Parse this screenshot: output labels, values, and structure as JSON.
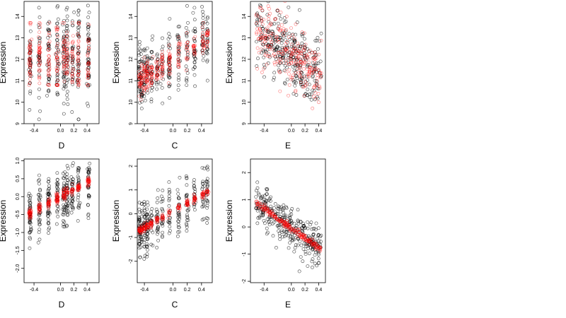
{
  "figure": {
    "background": "#ffffff",
    "colors": {
      "observed": "#000000",
      "fitted": "#ff0000",
      "axis": "#000000"
    }
  },
  "chart_data": [
    {
      "type": "scatter",
      "xlabel": "D",
      "ylabel": "Expression",
      "xlim": [
        -0.55,
        0.58
      ],
      "ylim": [
        9,
        14.7
      ],
      "xticks": [
        -0.4,
        0.0,
        0.2,
        0.4
      ],
      "xtick_labels": [
        "-0.4",
        "0.0",
        "0.2",
        "0.4"
      ],
      "yticks": [
        9,
        10,
        11,
        12,
        13,
        14
      ],
      "ytick_labels": [
        "9",
        "10",
        "11",
        "12",
        "13",
        "14"
      ],
      "columns": [
        -0.46,
        -0.32,
        -0.18,
        -0.05,
        0.05,
        0.1,
        0.18,
        0.27,
        0.42
      ],
      "series": [
        {
          "name": "",
          "marker": "open-circle",
          "color": "#000000",
          "y_range": [
            9.2,
            14.6
          ],
          "center": 12.1,
          "spread": 1.0,
          "count": 320
        },
        {
          "name": "",
          "marker": "open-circle",
          "color": "#ff0000",
          "y_range": [
            10.8,
            13.7
          ],
          "center": 12.1,
          "spread": 0.75,
          "count": 260
        }
      ]
    },
    {
      "type": "scatter",
      "xlabel": "C",
      "ylabel": "Expression",
      "xlim": [
        -0.5,
        0.55
      ],
      "ylim": [
        9,
        14.7
      ],
      "xticks": [
        -0.4,
        0.0,
        0.2,
        0.4
      ],
      "xtick_labels": [
        "-0.4",
        "0.0",
        "0.2",
        "0.4"
      ],
      "yticks": [
        9,
        10,
        11,
        12,
        13,
        14
      ],
      "ytick_labels": [
        "9",
        "10",
        "11",
        "12",
        "13",
        "14"
      ],
      "columns": [
        -0.47,
        -0.44,
        -0.4,
        -0.36,
        -0.3,
        -0.22,
        -0.15,
        -0.05,
        0.08,
        0.2,
        0.3,
        0.42,
        0.48
      ],
      "series": [
        {
          "name": "",
          "marker": "open-circle",
          "color": "#000000",
          "trend": {
            "slope": 2.0,
            "intercept": 12.0
          },
          "spread": 0.75,
          "count": 320
        },
        {
          "name": "",
          "marker": "open-circle",
          "color": "#ff0000",
          "trend": {
            "slope": 2.0,
            "intercept": 12.0
          },
          "spread": 0.35,
          "count": 260
        }
      ]
    },
    {
      "type": "scatter",
      "xlabel": "E",
      "ylabel": "Expression",
      "xlim": [
        -0.6,
        0.5
      ],
      "ylim": [
        9,
        14.7
      ],
      "xticks": [
        -0.4,
        0.0,
        0.2,
        0.4
      ],
      "xtick_labels": [
        "-0.4",
        "0.0",
        "0.2",
        "0.4"
      ],
      "yticks": [
        9,
        10,
        11,
        12,
        13,
        14
      ],
      "ytick_labels": [
        "9",
        "10",
        "11",
        "12",
        "13",
        "14"
      ],
      "columns": [],
      "series": [
        {
          "name": "",
          "marker": "open-circle",
          "color": "#000000",
          "trend": {
            "slope": -2.2,
            "intercept": 12.2
          },
          "spread": 0.8,
          "count": 320
        },
        {
          "name": "",
          "marker": "open-circle",
          "color": "#ff0000",
          "trend": {
            "slope": -2.2,
            "intercept": 12.2
          },
          "spread": 0.7,
          "count": 260
        }
      ]
    },
    {
      "type": "scatter",
      "xlabel": "D",
      "ylabel": "Expression",
      "xlim": [
        -0.55,
        0.58
      ],
      "ylim": [
        -2.4,
        1.05
      ],
      "xticks": [
        -0.4,
        0.0,
        0.2,
        0.4
      ],
      "xtick_labels": [
        "-0.4",
        "0.0",
        "0.2",
        "0.4"
      ],
      "yticks": [
        -2.0,
        -1.5,
        -1.0,
        -0.5,
        0.0,
        0.5,
        1.0
      ],
      "ytick_labels": [
        "-2.0",
        "-1.5",
        "-1.0",
        "-0.5",
        "0.0",
        "0.5",
        "1.0"
      ],
      "columns": [
        -0.46,
        -0.32,
        -0.18,
        -0.05,
        0.05,
        0.1,
        0.18,
        0.27,
        0.42
      ],
      "series": [
        {
          "name": "",
          "marker": "open-circle",
          "color": "#000000",
          "trend": {
            "slope": 1.0,
            "intercept": 0.0
          },
          "spread": 0.42,
          "count": 320
        },
        {
          "name": "",
          "marker": "open-circle",
          "color": "#ff0000",
          "trend": {
            "slope": 1.0,
            "intercept": 0.0
          },
          "spread": 0.07,
          "count": 220
        }
      ]
    },
    {
      "type": "scatter",
      "xlabel": "C",
      "ylabel": "Expression",
      "xlim": [
        -0.5,
        0.55
      ],
      "ylim": [
        -2.9,
        2.3
      ],
      "xticks": [
        -0.4,
        0.0,
        0.2,
        0.4
      ],
      "xtick_labels": [
        "-0.4",
        "0.0",
        "0.2",
        "0.4"
      ],
      "yticks": [
        -2,
        -1,
        0,
        1,
        2
      ],
      "ytick_labels": [
        "-2",
        "-1",
        "0",
        "1",
        "2"
      ],
      "columns": [
        -0.47,
        -0.44,
        -0.4,
        -0.36,
        -0.3,
        -0.22,
        -0.15,
        -0.05,
        0.08,
        0.2,
        0.3,
        0.42,
        0.48
      ],
      "series": [
        {
          "name": "",
          "marker": "open-circle",
          "color": "#000000",
          "trend": {
            "slope": 1.7,
            "intercept": 0.1
          },
          "spread": 0.55,
          "count": 320
        },
        {
          "name": "",
          "marker": "open-circle",
          "color": "#ff0000",
          "trend": {
            "slope": 1.7,
            "intercept": 0.1
          },
          "spread": 0.08,
          "count": 220
        }
      ]
    },
    {
      "type": "scatter",
      "xlabel": "E",
      "ylabel": "Expression",
      "xlim": [
        -0.6,
        0.5
      ],
      "ylim": [
        -2.05,
        2.5
      ],
      "xticks": [
        -0.4,
        0.0,
        0.2,
        0.4
      ],
      "xtick_labels": [
        "-0.4",
        "0.0",
        "0.2",
        "0.4"
      ],
      "yticks": [
        -2,
        -1,
        0,
        1,
        2
      ],
      "ytick_labels": [
        "-2",
        "-1",
        "0",
        "1",
        "2"
      ],
      "columns": [],
      "series": [
        {
          "name": "",
          "marker": "open-circle",
          "color": "#000000",
          "trend": {
            "slope": -1.8,
            "intercept": -0.05
          },
          "spread": 0.4,
          "count": 320
        },
        {
          "name": "",
          "marker": "open-circle",
          "color": "#ff0000",
          "trend": {
            "slope": -1.8,
            "intercept": -0.05
          },
          "spread": 0.06,
          "count": 220
        }
      ]
    }
  ]
}
